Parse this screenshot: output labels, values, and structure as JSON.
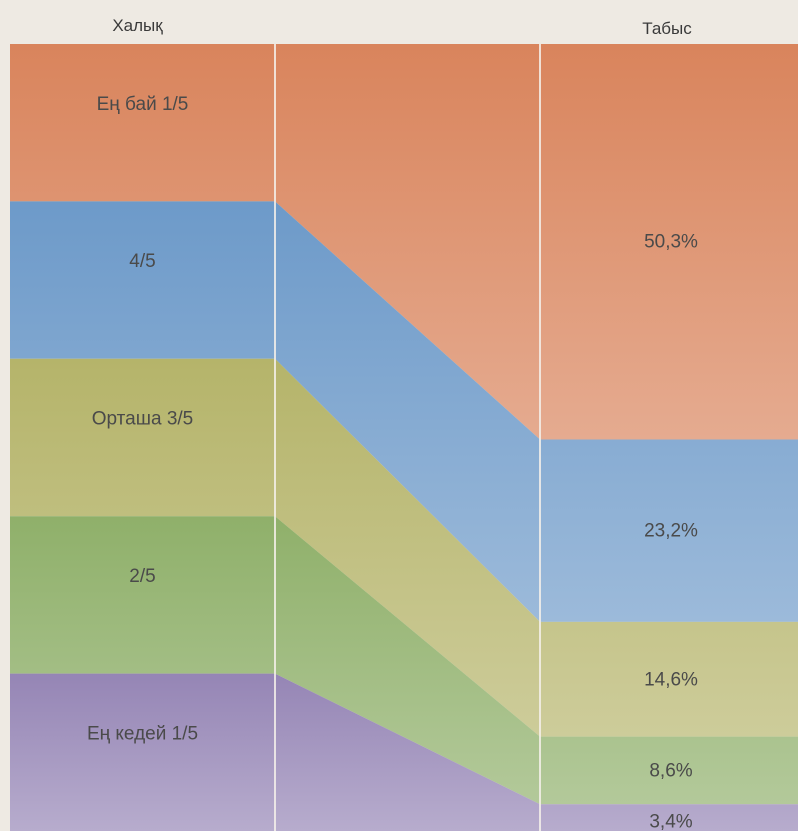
{
  "chart_data": {
    "type": "area",
    "title": "",
    "column_headers": {
      "left": "Халық",
      "right": "Табыс"
    },
    "categories": [
      "Ең бай 1/5",
      "4/5",
      "Орташа 3/5",
      "2/5",
      "Ең кедей 1/5"
    ],
    "population_share": [
      20,
      20,
      20,
      20,
      20
    ],
    "income_share": [
      50.3,
      23.2,
      14.6,
      8.6,
      3.4
    ],
    "income_labels": [
      "50,3%",
      "23,2%",
      "14,6%",
      "8,6%",
      "3,4%"
    ],
    "colors": [
      "#d9845c",
      "#6d9ac9",
      "#b5b46a",
      "#8fb06a",
      "#9585b5"
    ],
    "unit": "%"
  }
}
